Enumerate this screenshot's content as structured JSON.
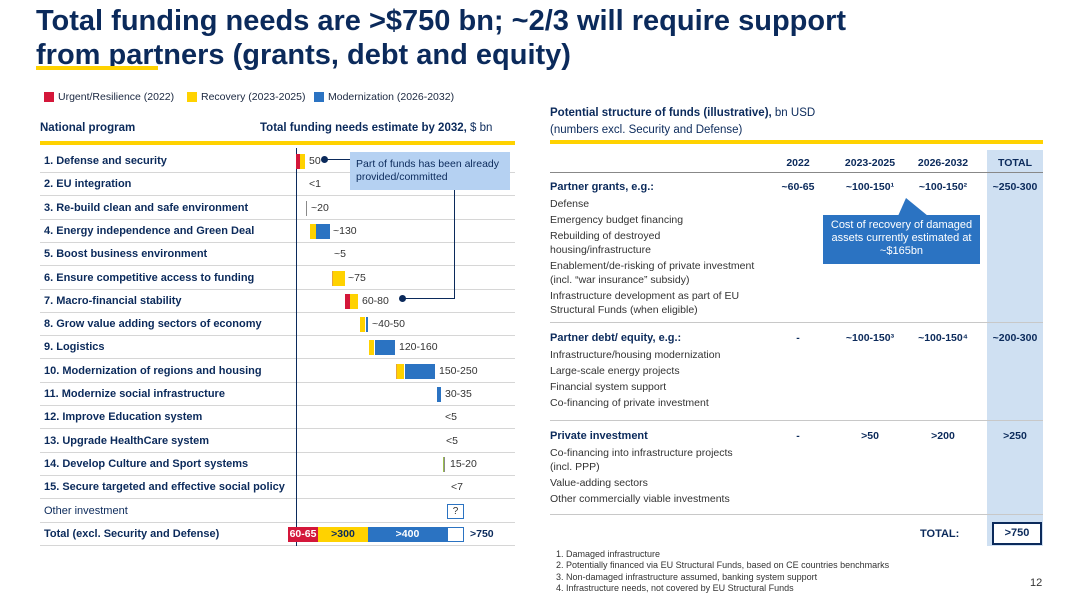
{
  "title": {
    "line1": "Total funding needs are >$750 bn; ~2/3 will require support",
    "line2": "from partners (grants, debt and equity)"
  },
  "legend": [
    {
      "label": "Urgent/Resilience (2022)",
      "color": "#d4173a"
    },
    {
      "label": "Recovery (2023-2025)",
      "color": "#ffd200"
    },
    {
      "label": "Modernization (2026-2032)",
      "color": "#2b73c2"
    }
  ],
  "left": {
    "col1": "National program",
    "col2": "Total funding needs estimate by 2032,",
    "col2_unit": " $ bn",
    "callout": "Part of funds has been already provided/committed",
    "rows": [
      {
        "label": "1. Defense and security",
        "value": "50"
      },
      {
        "label": "2. EU integration",
        "value": "<1"
      },
      {
        "label": "3. Re-build clean and safe environment",
        "value": "~20"
      },
      {
        "label": "4. Energy independence and Green Deal",
        "value": "~130"
      },
      {
        "label": "5. Boost business environment",
        "value": "~5"
      },
      {
        "label": "6. Ensure competitive access to funding",
        "value": "~75"
      },
      {
        "label": "7. Macro-financial stability",
        "value": "60-80"
      },
      {
        "label": "8. Grow value adding sectors of economy",
        "value": "~40-50"
      },
      {
        "label": "9. Logistics",
        "value": "120-160"
      },
      {
        "label": "10. Modernization of regions and housing",
        "value": "150-250"
      },
      {
        "label": "11. Modernize social infrastructure",
        "value": "30-35"
      },
      {
        "label": "12. Improve Education system",
        "value": "<5"
      },
      {
        "label": "13. Upgrade HealthCare system",
        "value": "<5"
      },
      {
        "label": "14. Develop Culture and Sport systems",
        "value": "15-20"
      },
      {
        "label": "15. Secure targeted and effective social policy",
        "value": "<7"
      },
      {
        "label": "Other investment",
        "value": "?"
      },
      {
        "label": "Total (excl. Security and Defense)",
        "value": ">750",
        "seg_urgent": "60-65",
        "seg_recovery": ">300",
        "seg_modern": ">400"
      }
    ]
  },
  "right": {
    "title_bold": "Potential structure of funds (illustrative),",
    "title_rest": " bn USD",
    "subtitle": "(numbers excl. Security and Defense)",
    "cols": [
      "2022",
      "2023-2025",
      "2026-2032",
      "TOTAL"
    ],
    "sections": [
      {
        "name": "Partner grants, e.g.:",
        "values": [
          "~60-65",
          "~100-150¹",
          "~100-150²",
          "~250-300"
        ],
        "items": [
          "Defense",
          "Emergency budget financing",
          "Rebuilding of destroyed housing/infrastructure",
          "Enablement/de-risking of private investment (incl. “war insurance” subsidy)",
          "Infrastructure development as part of EU Structural Funds (when eligible)"
        ]
      },
      {
        "name": "Partner debt/ equity, e.g.:",
        "values": [
          "-",
          "~100-150³",
          "~100-150⁴",
          "~200-300"
        ],
        "items": [
          "Infrastructure/housing modernization",
          "Large-scale energy projects",
          "Financial system support",
          "Co-financing of private investment"
        ]
      },
      {
        "name": "Private investment",
        "values": [
          "-",
          ">50",
          ">200",
          ">250"
        ],
        "items": [
          "Co-financing into infrastructure projects (incl. PPP)",
          "Value-adding sectors",
          "Other commercially viable investments"
        ]
      }
    ],
    "callout": "Cost of recovery of damaged assets currently estimated at ~$165bn",
    "total_label": "TOTAL:",
    "total_value": ">750"
  },
  "footnotes": [
    "1. Damaged infrastructure",
    "2. Potentially financed via EU Structural Funds, based on CE countries benchmarks",
    "3. Non-damaged infrastructure assumed, banking system support",
    "4. Infrastructure needs, not covered by EU Structural Funds"
  ],
  "page_number": "12"
}
